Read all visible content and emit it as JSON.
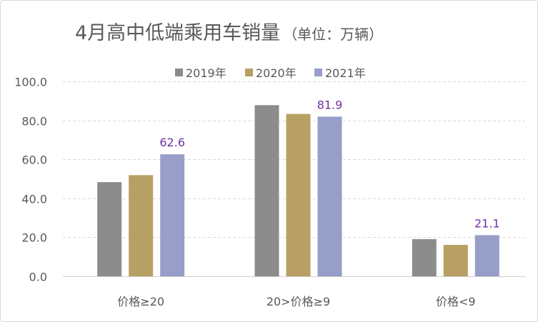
{
  "chart_data": {
    "type": "bar",
    "title": "4月高中低端乘用车销量",
    "subtitle": "（单位：万辆）",
    "categories": [
      "价格≥20",
      "20>价格≥9",
      "价格<9"
    ],
    "series": [
      {
        "name": "2019年",
        "values": [
          48.3,
          87.8,
          19.1
        ],
        "color": "#8c8c8c"
      },
      {
        "name": "2020年",
        "values": [
          51.9,
          83.3,
          16.1
        ],
        "color": "#b8a064"
      },
      {
        "name": "2021年",
        "values": [
          62.6,
          81.9,
          21.1
        ],
        "color": "#979ec8",
        "data_labels": [
          "62.6",
          "81.9",
          "21.1"
        ]
      }
    ],
    "data_label_color": "#7030a0",
    "yticks": [
      "0.0",
      "20.0",
      "40.0",
      "60.0",
      "80.0",
      "100.0"
    ],
    "ylim": [
      0,
      100
    ],
    "grid": true,
    "legend": "top"
  }
}
